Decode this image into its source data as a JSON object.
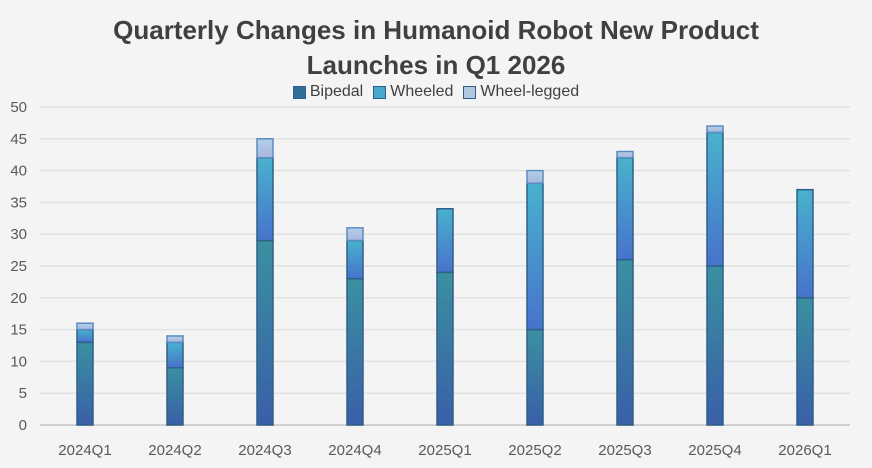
{
  "chart_data": {
    "type": "bar",
    "stacked": true,
    "title": "Quarterly Changes in Humanoid Robot New Product Launches in Q1 2026",
    "title_lines": [
      "Quarterly Changes in Humanoid Robot New Product",
      "Launches in Q1 2026"
    ],
    "categories": [
      "2024Q1",
      "2024Q2",
      "2024Q3",
      "2024Q4",
      "2025Q1",
      "2025Q2",
      "2025Q3",
      "2025Q4",
      "2026Q1"
    ],
    "series": [
      {
        "name": "Bipedal",
        "values": [
          13,
          9,
          29,
          23,
          24,
          15,
          26,
          25,
          20
        ],
        "color": "#3a7fa0"
      },
      {
        "name": "Wheeled",
        "values": [
          2,
          4,
          13,
          6,
          10,
          23,
          16,
          21,
          17
        ],
        "color": "#46a8cc"
      },
      {
        "name": "Wheel-legged",
        "values": [
          1,
          1,
          3,
          2,
          0,
          2,
          1,
          1,
          0
        ],
        "color": "#b0c8e0"
      }
    ],
    "ylim": [
      0,
      50
    ],
    "yticks": [
      0,
      5,
      10,
      15,
      20,
      25,
      30,
      35,
      40,
      45,
      50
    ],
    "xlabel": "",
    "ylabel": "",
    "grid": true,
    "legend_position": "top"
  }
}
